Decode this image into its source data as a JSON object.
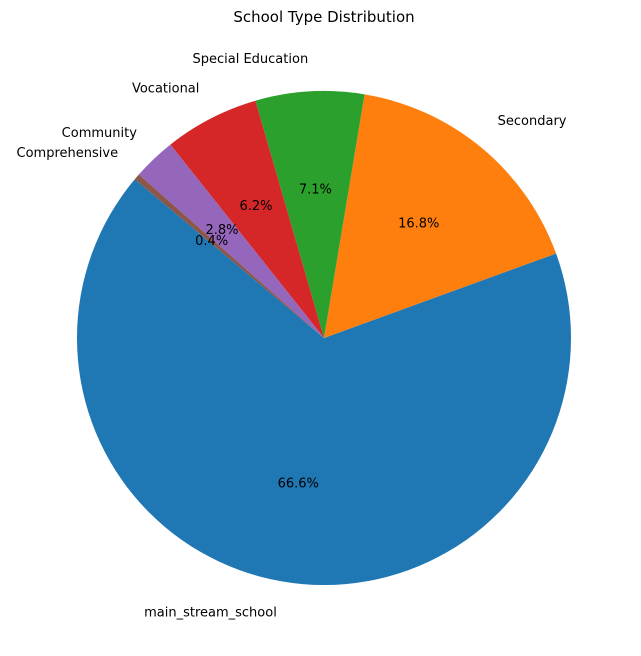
{
  "chart_data": {
    "type": "pie",
    "title": "School Type Distribution",
    "start_angle_deg": 140,
    "direction": "counterclockwise",
    "categories": [
      "main_stream_school",
      "Secondary",
      "Special Education",
      "Vocational",
      "Community",
      "Comprehensive"
    ],
    "values": [
      66.6,
      16.8,
      7.1,
      6.2,
      2.8,
      0.4
    ],
    "labels": [
      "66.6%",
      "16.8%",
      "7.1%",
      "6.2%",
      "2.8%",
      "0.4%"
    ],
    "colors": [
      "#1f77b4",
      "#ff7f0e",
      "#2ca02c",
      "#d62728",
      "#9467bd",
      "#8c564b"
    ]
  }
}
